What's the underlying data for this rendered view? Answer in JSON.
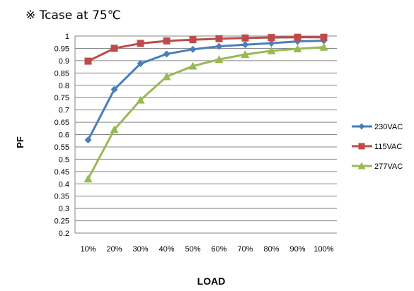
{
  "annotation": "※ Tcase at 75℃",
  "chart_data": {
    "type": "line",
    "xlabel": "LOAD",
    "ylabel": "PF",
    "categories": [
      "10%",
      "20%",
      "30%",
      "40%",
      "50%",
      "60%",
      "70%",
      "80%",
      "90%",
      "100%"
    ],
    "ylim": [
      0.2,
      1
    ],
    "yticks": [
      "0.2",
      "0.25",
      "0.3",
      "0.35",
      "0.4",
      "0.45",
      "0.5",
      "0.55",
      "0.6",
      "0.65",
      "0.7",
      "0.75",
      "0.8",
      "0.85",
      "0.9",
      "0.95",
      "1"
    ],
    "grid": "horizontal",
    "legend": "right",
    "series": [
      {
        "name": "230VAC",
        "color": "#4a7ebb",
        "marker": "diamond",
        "values": [
          0.578,
          0.783,
          0.888,
          0.927,
          0.946,
          0.958,
          0.965,
          0.971,
          0.978,
          0.981
        ]
      },
      {
        "name": "115VAC",
        "color": "#be4b48",
        "marker": "square",
        "values": [
          0.898,
          0.95,
          0.97,
          0.98,
          0.985,
          0.989,
          0.992,
          0.994,
          0.995,
          0.995
        ]
      },
      {
        "name": "277VAC",
        "color": "#98b954",
        "marker": "triangle",
        "values": [
          0.42,
          0.62,
          0.74,
          0.835,
          0.878,
          0.905,
          0.925,
          0.94,
          0.948,
          0.955
        ]
      }
    ]
  }
}
